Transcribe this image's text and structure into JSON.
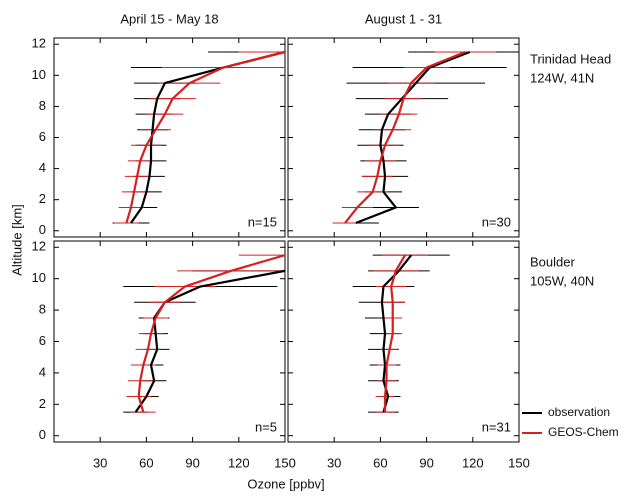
{
  "figure": {
    "xlabel": "Ozone [ppbv]",
    "ylabel": "Altitude [km]"
  },
  "chart_data": [
    {
      "type": "line",
      "title": "April 15 - May 18",
      "annotation": "n=15",
      "xlim": [
        0,
        150
      ],
      "ylim": [
        -0.4,
        12.4
      ],
      "xticks": [
        30,
        60,
        90,
        120,
        150
      ],
      "yticks": [
        0,
        2,
        4,
        6,
        8,
        10,
        12
      ],
      "series": [
        {
          "color": "#000000",
          "altitude": [
            0.5,
            1.5,
            2.5,
            3.5,
            4.5,
            5.5,
            6.5,
            7.5,
            8.5,
            9.5,
            10.5,
            11.5
          ],
          "values": [
            50,
            57,
            60,
            62,
            63,
            63,
            64,
            65,
            67,
            72,
            110,
            150
          ],
          "errors": [
            12,
            10,
            10,
            10,
            10,
            10,
            10,
            12,
            15,
            20,
            60,
            50
          ]
        },
        {
          "color": "#d42020",
          "altitude": [
            0.5,
            1.5,
            2.5,
            3.5,
            4.5,
            5.5,
            6.5,
            7.5,
            8.5,
            9.5,
            10.5,
            11.5
          ],
          "values": [
            47,
            50,
            52,
            54,
            56,
            60,
            66,
            72,
            77,
            88,
            110,
            150
          ],
          "errors": [
            8,
            8,
            8,
            8,
            8,
            10,
            10,
            12,
            15,
            20,
            40,
            30
          ]
        }
      ]
    },
    {
      "type": "line",
      "title": "August 1 - 31",
      "annotation": "n=30",
      "location": [
        "Trinidad Head",
        "124W,  41N"
      ],
      "xlim": [
        0,
        150
      ],
      "ylim": [
        -0.4,
        12.4
      ],
      "xticks": [
        30,
        60,
        90,
        120,
        150
      ],
      "yticks": [
        0,
        2,
        4,
        6,
        8,
        10,
        12
      ],
      "series": [
        {
          "color": "#000000",
          "altitude": [
            0.5,
            1.5,
            2.5,
            3.5,
            4.5,
            5.5,
            6.5,
            7.5,
            8.5,
            9.5,
            10.5,
            11.5
          ],
          "values": [
            44,
            70,
            62,
            63,
            62,
            60,
            61,
            65,
            74,
            83,
            92,
            118
          ],
          "errors": [
            15,
            15,
            12,
            15,
            15,
            15,
            15,
            15,
            30,
            45,
            50,
            40
          ]
        },
        {
          "color": "#d42020",
          "altitude": [
            0.5,
            1.5,
            2.5,
            3.5,
            4.5,
            5.5,
            6.5,
            7.5,
            8.5,
            9.5,
            10.5,
            11.5
          ],
          "values": [
            37,
            45,
            55,
            58,
            60,
            63,
            68,
            72,
            75,
            80,
            90,
            115
          ],
          "errors": [
            8,
            10,
            10,
            10,
            10,
            10,
            12,
            12,
            12,
            15,
            15,
            20
          ]
        }
      ]
    },
    {
      "type": "line",
      "annotation": "n=5",
      "xlim": [
        0,
        150
      ],
      "ylim": [
        -0.4,
        12.4
      ],
      "xticks": [
        30,
        60,
        90,
        120,
        150
      ],
      "yticks": [
        0,
        2,
        4,
        6,
        8,
        10,
        12
      ],
      "series": [
        {
          "color": "#000000",
          "altitude": [
            0.5,
            1.5,
            2.5,
            3.5,
            4.5,
            5.5,
            6.5,
            7.5,
            8.5,
            9.5,
            10.5,
            11.5
          ],
          "values": [
            null,
            53,
            60,
            65,
            63,
            67,
            66,
            65,
            72,
            95,
            150,
            null
          ],
          "errors": [
            null,
            8,
            8,
            8,
            8,
            8,
            8,
            10,
            20,
            50,
            60,
            null
          ]
        },
        {
          "color": "#d42020",
          "altitude": [
            0.5,
            1.5,
            2.5,
            3.5,
            4.5,
            5.5,
            6.5,
            7.5,
            8.5,
            9.5,
            10.5,
            11.5
          ],
          "values": [
            null,
            58,
            55,
            56,
            58,
            61,
            63,
            66,
            72,
            85,
            115,
            150
          ],
          "errors": [
            null,
            8,
            8,
            8,
            8,
            8,
            8,
            8,
            10,
            20,
            35,
            30
          ]
        }
      ]
    },
    {
      "type": "line",
      "annotation": "n=31",
      "location": [
        "Boulder",
        "105W,  40N"
      ],
      "xlim": [
        0,
        150
      ],
      "ylim": [
        -0.4,
        12.4
      ],
      "xticks": [
        30,
        60,
        90,
        120,
        150
      ],
      "yticks": [
        0,
        2,
        4,
        6,
        8,
        10,
        12
      ],
      "series": [
        {
          "name": "observation",
          "color": "#000000",
          "altitude": [
            0.5,
            1.5,
            2.5,
            3.5,
            4.5,
            5.5,
            6.5,
            7.5,
            8.5,
            9.5,
            10.5,
            11.5
          ],
          "values": [
            null,
            62,
            65,
            62,
            63,
            62,
            63,
            62,
            61,
            62,
            72,
            80
          ],
          "errors": [
            null,
            10,
            8,
            10,
            10,
            10,
            10,
            12,
            15,
            20,
            20,
            25
          ]
        },
        {
          "name": "GEOS-Chem",
          "color": "#d42020",
          "altitude": [
            0.5,
            1.5,
            2.5,
            3.5,
            4.5,
            5.5,
            6.5,
            7.5,
            8.5,
            9.5,
            10.5,
            11.5
          ],
          "values": [
            null,
            63,
            63,
            64,
            64,
            66,
            68,
            68,
            68,
            67,
            70,
            76
          ],
          "errors": [
            null,
            6,
            6,
            6,
            6,
            6,
            6,
            6,
            8,
            10,
            15,
            15
          ]
        }
      ]
    }
  ]
}
